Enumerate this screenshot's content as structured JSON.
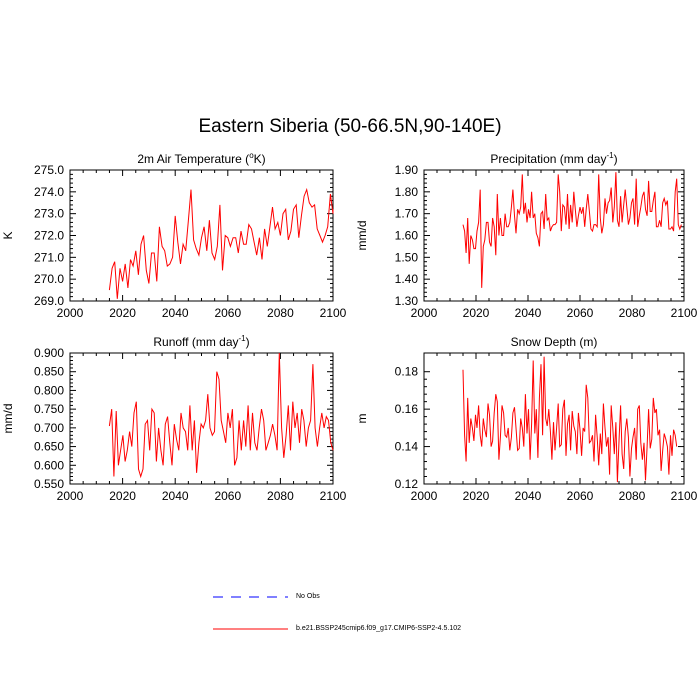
{
  "title": "Eastern Siberia (50-66.5N,90-140E)",
  "colors": {
    "model": "#ff0000",
    "obs": "#0000ff",
    "frame": "#000000"
  },
  "legend": {
    "obs_label": "No Obs",
    "model_label": "b.e21.BSSP245cmip6.f09_g17.CMIP6-SSP2-4.5.102"
  },
  "chart_data": [
    {
      "type": "line",
      "title_pre": "2m Air Temperature (",
      "title_sup": "o",
      "title_post": "K)",
      "xlabel": "",
      "ylabel": "K",
      "xlim": [
        2000,
        2100
      ],
      "ylim": [
        269.0,
        275.0
      ],
      "xticks": [
        "2000",
        "2020",
        "2040",
        "2060",
        "2080",
        "2100"
      ],
      "yticks": [
        "269.0",
        "270.0",
        "271.0",
        "272.0",
        "273.0",
        "274.0",
        "275.0"
      ],
      "x_start": 2015,
      "series": [
        {
          "values": [
            269.5,
            270.5,
            270.8,
            269.1,
            270.5,
            269.9,
            270.7,
            269.6,
            270.9,
            270.6,
            271.3,
            270.2,
            271.6,
            272.0,
            270.4,
            269.8,
            271.2,
            271.2,
            269.9,
            272.4,
            271.5,
            271.3,
            270.6,
            270.7,
            271.0,
            272.9,
            271.7,
            270.7,
            271.6,
            271.3,
            272.7,
            274.1,
            271.8,
            271.4,
            271.1,
            271.9,
            272.4,
            271.3,
            272.7,
            271.2,
            270.9,
            271.5,
            273.4,
            270.4,
            272.0,
            271.9,
            271.5,
            271.9,
            271.9,
            271.2,
            272.2,
            271.6,
            271.6,
            272.5,
            272.3,
            271.7,
            271.1,
            271.9,
            270.9,
            272.3,
            271.5,
            272.4,
            273.3,
            272.3,
            272.6,
            272.0,
            273.0,
            273.2,
            271.8,
            272.2,
            273.2,
            273.4,
            271.9,
            272.9,
            273.8,
            274.1,
            273.5,
            273.3,
            273.4,
            272.3,
            272.0,
            271.7,
            272.0,
            272.4,
            273.9,
            273.0,
            273.2,
            273.0
          ]
        }
      ]
    },
    {
      "type": "line",
      "title_pre": "Precipitation (mm day",
      "title_sup": "-1",
      "title_post": ")",
      "xlabel": "",
      "ylabel": "mm/d",
      "xlim": [
        2000,
        2100
      ],
      "ylim": [
        1.3,
        1.9
      ],
      "xticks": [
        "2000",
        "2020",
        "2040",
        "2060",
        "2080",
        "2100"
      ],
      "yticks": [
        "1.30",
        "1.40",
        "1.50",
        "1.60",
        "1.70",
        "1.80",
        "1.90"
      ],
      "x_start": 2015,
      "series": [
        {
          "values": [
            1.65,
            1.62,
            1.52,
            1.68,
            1.47,
            1.6,
            1.58,
            1.54,
            1.54,
            1.62,
            1.66,
            1.81,
            1.36,
            1.55,
            1.58,
            1.66,
            1.66,
            1.57,
            1.55,
            1.68,
            1.64,
            1.51,
            1.79,
            1.6,
            1.68,
            1.6,
            1.6,
            1.7,
            1.64,
            1.64,
            1.66,
            1.73,
            1.81,
            1.69,
            1.61,
            1.72,
            1.7,
            1.73,
            1.88,
            1.7,
            1.75,
            1.66,
            1.72,
            1.68,
            1.8,
            1.68,
            1.7,
            1.61,
            1.59,
            1.55,
            1.7,
            1.71,
            1.63,
            1.79,
            1.67,
            1.68,
            1.62,
            1.64,
            1.65,
            1.65,
            1.66,
            1.88,
            1.8,
            1.62,
            1.74,
            1.73,
            1.65,
            1.79,
            1.63,
            1.74,
            1.66,
            1.8,
            1.72,
            1.64,
            1.69,
            1.73,
            1.7,
            1.73,
            1.64,
            1.72,
            1.79,
            1.71,
            1.63,
            1.62,
            1.65,
            1.65,
            1.64,
            1.88,
            1.68,
            1.61,
            1.65,
            1.77,
            1.7,
            1.75,
            1.76,
            1.82,
            1.66,
            1.73,
            1.89,
            1.67,
            1.64,
            1.78,
            1.66,
            1.74,
            1.81,
            1.73,
            1.65,
            1.68,
            1.75,
            1.77,
            1.65,
            1.86,
            1.64,
            1.69,
            1.73,
            1.78,
            1.8,
            1.72,
            1.69,
            1.85,
            1.71,
            1.71,
            1.76,
            1.8,
            1.64,
            1.64,
            1.67,
            1.64,
            1.75,
            1.77,
            1.74,
            1.76,
            1.63,
            1.63,
            1.64,
            1.62,
            1.8,
            1.86,
            1.65,
            1.63,
            1.65
          ]
        }
      ],
      "x_step": 0.6
    },
    {
      "type": "line",
      "title_pre": "Runoff (mm day",
      "title_sup": "-1",
      "title_post": ")",
      "xlabel": "",
      "ylabel": "mm/d",
      "xlim": [
        2000,
        2100
      ],
      "ylim": [
        0.55,
        0.9
      ],
      "xticks": [
        "2000",
        "2020",
        "2040",
        "2060",
        "2080",
        "2100"
      ],
      "yticks": [
        "0.550",
        "0.600",
        "0.650",
        "0.700",
        "0.750",
        "0.800",
        "0.850",
        "0.900"
      ],
      "x_start": 2015,
      "series": [
        {
          "values": [
            0.705,
            0.75,
            0.57,
            0.745,
            0.6,
            0.64,
            0.68,
            0.61,
            0.64,
            0.69,
            0.65,
            0.74,
            0.77,
            0.59,
            0.57,
            0.59,
            0.71,
            0.72,
            0.64,
            0.75,
            0.74,
            0.61,
            0.7,
            0.64,
            0.6,
            0.71,
            0.73,
            0.66,
            0.6,
            0.71,
            0.67,
            0.64,
            0.74,
            0.7,
            0.69,
            0.64,
            0.76,
            0.64,
            0.72,
            0.58,
            0.66,
            0.71,
            0.7,
            0.72,
            0.79,
            0.7,
            0.68,
            0.69,
            0.85,
            0.83,
            0.72,
            0.69,
            0.66,
            0.74,
            0.7,
            0.75,
            0.6,
            0.62,
            0.72,
            0.64,
            0.72,
            0.65,
            0.76,
            0.64,
            0.74,
            0.66,
            0.64,
            0.7,
            0.75,
            0.72,
            0.64,
            0.66,
            0.68,
            0.71,
            0.68,
            0.64,
            0.9,
            0.7,
            0.62,
            0.68,
            0.76,
            0.64,
            0.77,
            0.7,
            0.74,
            0.66,
            0.75,
            0.72,
            0.65,
            0.7,
            0.72,
            0.87,
            0.7,
            0.65,
            0.7,
            0.74,
            0.7,
            0.73,
            0.72,
            0.66,
            0.64
          ]
        }
      ],
      "x_step": 0.85
    },
    {
      "type": "line",
      "title_pre": "Snow Depth (m)",
      "title_sup": "",
      "title_post": "",
      "xlabel": "",
      "ylabel": "m",
      "xlim": [
        2000,
        2100
      ],
      "ylim": [
        0.12,
        0.19
      ],
      "xticks": [
        "2000",
        "2020",
        "2040",
        "2060",
        "2080",
        "2100"
      ],
      "yticks": [
        "0.12",
        "0.14",
        "0.16",
        "0.18"
      ],
      "x_start": 2015,
      "series": [
        {
          "values": [
            0.181,
            0.146,
            0.132,
            0.166,
            0.142,
            0.155,
            0.15,
            0.143,
            0.157,
            0.15,
            0.162,
            0.146,
            0.14,
            0.155,
            0.149,
            0.145,
            0.163,
            0.157,
            0.14,
            0.143,
            0.158,
            0.168,
            0.164,
            0.133,
            0.145,
            0.162,
            0.158,
            0.146,
            0.145,
            0.15,
            0.138,
            0.145,
            0.158,
            0.161,
            0.15,
            0.138,
            0.139,
            0.155,
            0.15,
            0.14,
            0.168,
            0.147,
            0.16,
            0.133,
            0.152,
            0.186,
            0.147,
            0.16,
            0.134,
            0.166,
            0.184,
            0.146,
            0.188,
            0.155,
            0.151,
            0.16,
            0.148,
            0.133,
            0.153,
            0.138,
            0.15,
            0.163,
            0.14,
            0.141,
            0.16,
            0.165,
            0.135,
            0.152,
            0.157,
            0.138,
            0.159,
            0.151,
            0.148,
            0.136,
            0.158,
            0.149,
            0.135,
            0.15,
            0.148,
            0.173,
            0.166,
            0.142,
            0.143,
            0.146,
            0.132,
            0.157,
            0.145,
            0.13,
            0.147,
            0.136,
            0.163,
            0.15,
            0.14,
            0.145,
            0.125,
            0.162,
            0.15,
            0.136,
            0.153,
            0.121,
            0.143,
            0.162,
            0.136,
            0.128,
            0.148,
            0.155,
            0.145,
            0.124,
            0.139,
            0.145,
            0.15,
            0.133,
            0.16,
            0.162,
            0.142,
            0.133,
            0.142,
            0.122,
            0.14,
            0.16,
            0.139,
            0.144,
            0.166,
            0.158,
            0.16,
            0.146,
            0.149,
            0.127,
            0.138,
            0.147,
            0.144,
            0.14,
            0.125,
            0.146,
            0.135,
            0.149,
            0.146,
            0.14
          ]
        }
      ],
      "x_step": 0.6
    }
  ]
}
